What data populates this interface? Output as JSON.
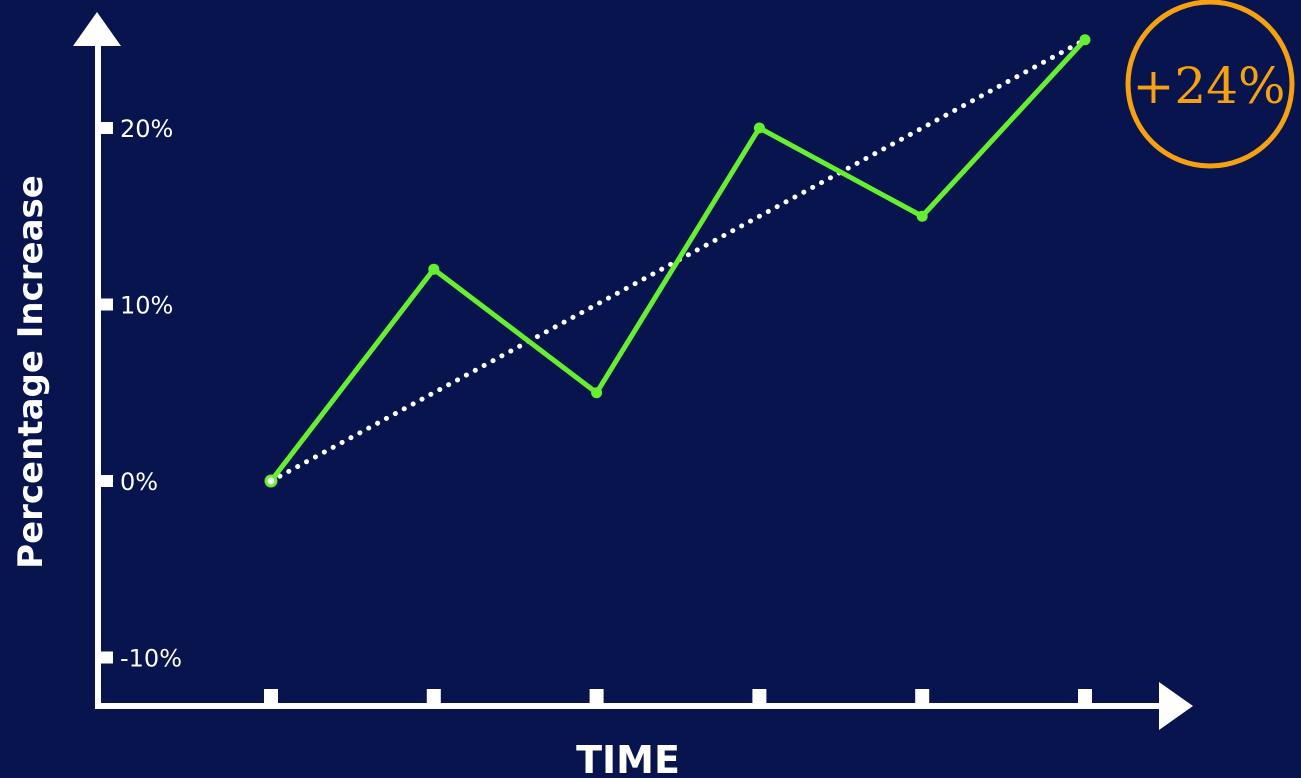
{
  "chart_data": {
    "type": "line",
    "title": "",
    "xlabel": "TIME",
    "ylabel": "Percentage Increase",
    "yticks": [
      "20%",
      "10%",
      "0%",
      "-10%"
    ],
    "ytick_values": [
      20,
      10,
      0,
      -10
    ],
    "ylim": [
      -12,
      27
    ],
    "xlim": [
      0,
      5
    ],
    "grid": false,
    "legend": "none",
    "series": [
      {
        "x": [
          0,
          1,
          2,
          3,
          4,
          5
        ],
        "values": [
          0,
          12,
          5,
          20,
          15,
          25
        ],
        "color": "#66ee33",
        "style": "solid"
      },
      {
        "x": [
          0,
          5
        ],
        "values": [
          0,
          25
        ],
        "color": "#ffffff",
        "style": "dotted"
      }
    ],
    "annotation": {
      "text": "+24%",
      "color": "#f5a112"
    }
  }
}
